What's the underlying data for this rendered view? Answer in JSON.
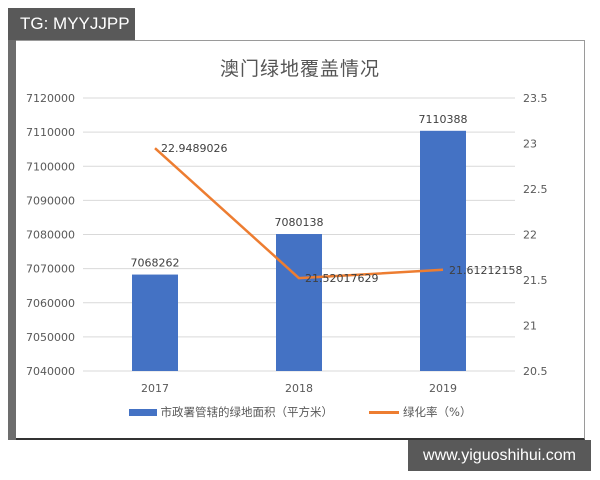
{
  "watermark_top": "TG: MYYJJPP",
  "watermark_bottom": "www.yiguoshihui.com",
  "chart_data": {
    "type": "bar+line",
    "title": "澳门绿地覆盖情况",
    "categories": [
      "2017",
      "2018",
      "2019"
    ],
    "series": [
      {
        "name": "市政署管辖的绿地面积（平方米）",
        "type": "bar",
        "axis": "left",
        "color": "#4472c4",
        "values": [
          7068262,
          7080138,
          7110388
        ],
        "labels": [
          "7068262",
          "7080138",
          "7110388"
        ]
      },
      {
        "name": "绿化率（%）",
        "type": "line",
        "axis": "right",
        "color": "#ed7d31",
        "values": [
          22.9489026,
          21.52017629,
          21.61212158
        ],
        "labels": [
          "22.9489026",
          "21.52017629",
          "21.61212158"
        ]
      }
    ],
    "left_axis": {
      "ylim": [
        7040000,
        7120000
      ],
      "ticks": [
        "7120000",
        "7110000",
        "7100000",
        "7090000",
        "7080000",
        "7070000",
        "7060000",
        "7050000",
        "7040000"
      ]
    },
    "right_axis": {
      "ylim": [
        20.5,
        23.5
      ],
      "ticks": [
        "23.5",
        "23",
        "22.5",
        "22",
        "21.5",
        "21",
        "20.5"
      ]
    },
    "grid": true,
    "legend_position": "bottom"
  }
}
